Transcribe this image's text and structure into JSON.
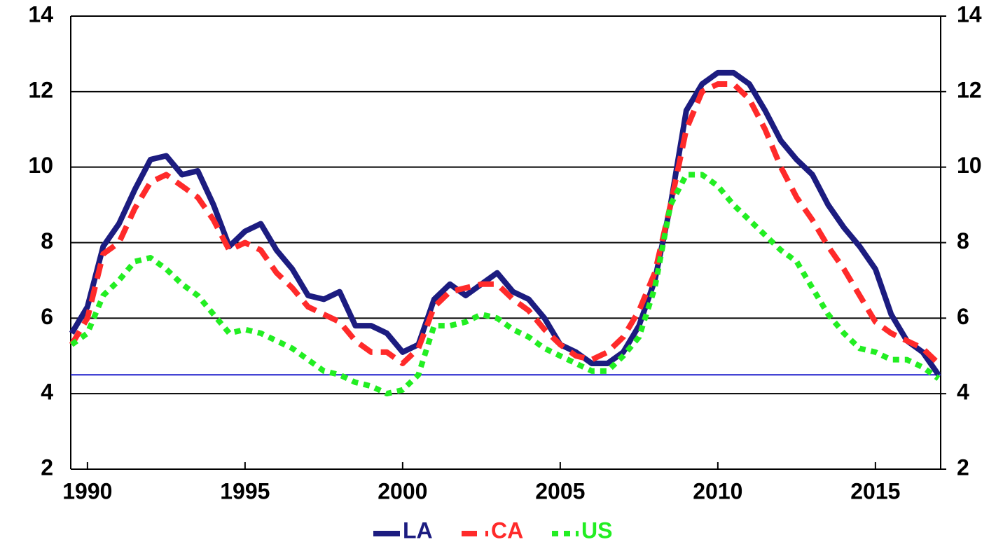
{
  "chart_data": {
    "type": "line",
    "x": [
      1989.5,
      1990,
      1990.5,
      1991,
      1991.5,
      1992,
      1992.5,
      1993,
      1993.5,
      1994,
      1994.5,
      1995,
      1995.5,
      1996,
      1996.5,
      1997,
      1997.5,
      1998,
      1998.5,
      1999,
      1999.5,
      2000,
      2000.5,
      2001,
      2001.5,
      2002,
      2002.5,
      2003,
      2003.5,
      2004,
      2004.5,
      2005,
      2005.5,
      2006,
      2006.5,
      2007,
      2007.5,
      2008,
      2008.5,
      2009,
      2009.5,
      2010,
      2010.5,
      2011,
      2011.5,
      2012,
      2012.5,
      2013,
      2013.5,
      2014,
      2014.5,
      2015,
      2015.5,
      2016,
      2016.5,
      2017
    ],
    "series": [
      {
        "name": "LA",
        "color": "#1c1c80",
        "dash": "solid",
        "values": [
          5.6,
          6.3,
          7.9,
          8.5,
          9.4,
          10.2,
          10.3,
          9.8,
          9.9,
          9.0,
          7.9,
          8.3,
          8.5,
          7.8,
          7.3,
          6.6,
          6.5,
          6.7,
          5.8,
          5.8,
          5.6,
          5.1,
          5.3,
          6.5,
          6.9,
          6.6,
          6.9,
          7.2,
          6.7,
          6.5,
          6.0,
          5.3,
          5.1,
          4.8,
          4.8,
          5.1,
          5.8,
          7.0,
          9.0,
          11.5,
          12.2,
          12.5,
          12.5,
          12.2,
          11.5,
          10.7,
          10.2,
          9.8,
          9.0,
          8.4,
          7.9,
          7.3,
          6.1,
          5.4,
          5.1,
          4.5
        ]
      },
      {
        "name": "CA",
        "color": "#ff2a2a",
        "dash": "dashed",
        "values": [
          5.3,
          6.0,
          7.7,
          8.0,
          8.9,
          9.6,
          9.8,
          9.5,
          9.2,
          8.6,
          7.8,
          8.0,
          7.8,
          7.2,
          6.8,
          6.3,
          6.1,
          5.9,
          5.4,
          5.1,
          5.1,
          4.8,
          5.2,
          6.3,
          6.7,
          6.8,
          6.9,
          6.9,
          6.5,
          6.2,
          5.7,
          5.3,
          5.0,
          4.9,
          5.1,
          5.5,
          6.2,
          7.2,
          9.0,
          11.0,
          12.0,
          12.2,
          12.2,
          11.8,
          11.0,
          10.0,
          9.2,
          8.6,
          7.9,
          7.3,
          6.6,
          5.9,
          5.6,
          5.4,
          5.2,
          4.8
        ]
      },
      {
        "name": "US",
        "color": "#22ee22",
        "dash": "dotted",
        "values": [
          5.3,
          5.6,
          6.6,
          7.0,
          7.5,
          7.6,
          7.3,
          6.9,
          6.6,
          6.1,
          5.6,
          5.7,
          5.6,
          5.4,
          5.2,
          4.9,
          4.6,
          4.5,
          4.3,
          4.2,
          4.0,
          4.1,
          4.5,
          5.8,
          5.8,
          5.9,
          6.1,
          6.0,
          5.7,
          5.5,
          5.2,
          5.0,
          4.8,
          4.6,
          4.6,
          5.0,
          5.5,
          6.8,
          9.0,
          9.8,
          9.8,
          9.5,
          9.0,
          8.6,
          8.2,
          7.8,
          7.5,
          6.8,
          6.1,
          5.6,
          5.2,
          5.1,
          4.9,
          4.9,
          4.7,
          4.4
        ]
      }
    ],
    "xlim": [
      1989.47,
      2017.07
    ],
    "xticks": [
      1990,
      1995,
      2000,
      2005,
      2010,
      2015
    ],
    "ylim": [
      2,
      14
    ],
    "yticks": [
      2,
      4,
      6,
      8,
      10,
      12,
      14
    ],
    "y2lim": [
      2,
      14
    ],
    "y2ticks": [
      2,
      4,
      6,
      8,
      10,
      12,
      14
    ],
    "reference_line": {
      "value": 4.5,
      "color": "#1f1fcc"
    },
    "grid": true,
    "legend": "bottom"
  }
}
